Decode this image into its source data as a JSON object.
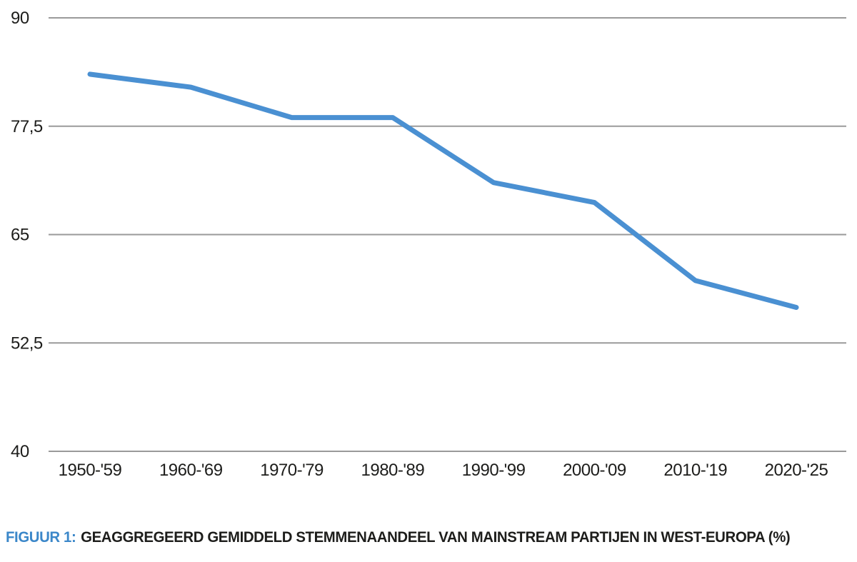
{
  "chart_data": {
    "type": "line",
    "title": "",
    "xlabel": "",
    "ylabel": "",
    "categories": [
      "1950-'59",
      "1960-'69",
      "1970-'79",
      "1980-'89",
      "1990-'99",
      "2000-'09",
      "2010-'19",
      "2020-'25"
    ],
    "series": [
      {
        "name": "Geaggregeerd gemiddeld stemmenaandeel van mainstream partijen in West-Europa (%)",
        "values": [
          83.5,
          82,
          78.5,
          78.5,
          71,
          68.7,
          59.7,
          56.6
        ]
      }
    ],
    "ylim": [
      40,
      90
    ],
    "y_tick_values": [
      90,
      77.5,
      65,
      52.5,
      40
    ],
    "y_tick_labels": [
      "90",
      "77,5",
      "65",
      "52,5",
      "40"
    ],
    "grid": "horizontal-only",
    "legend_position": "none",
    "line_color": "#4a90d2",
    "grid_color": "#9a9a9a",
    "tick_text_color": "#1d1d1b"
  },
  "caption": {
    "prefix": "FIGUUR 1:",
    "text": "GEAGGREGEERD GEMIDDELD STEMMENAANDEEL VAN MAINSTREAM PARTIJEN IN WEST-EUROPA (%)"
  }
}
